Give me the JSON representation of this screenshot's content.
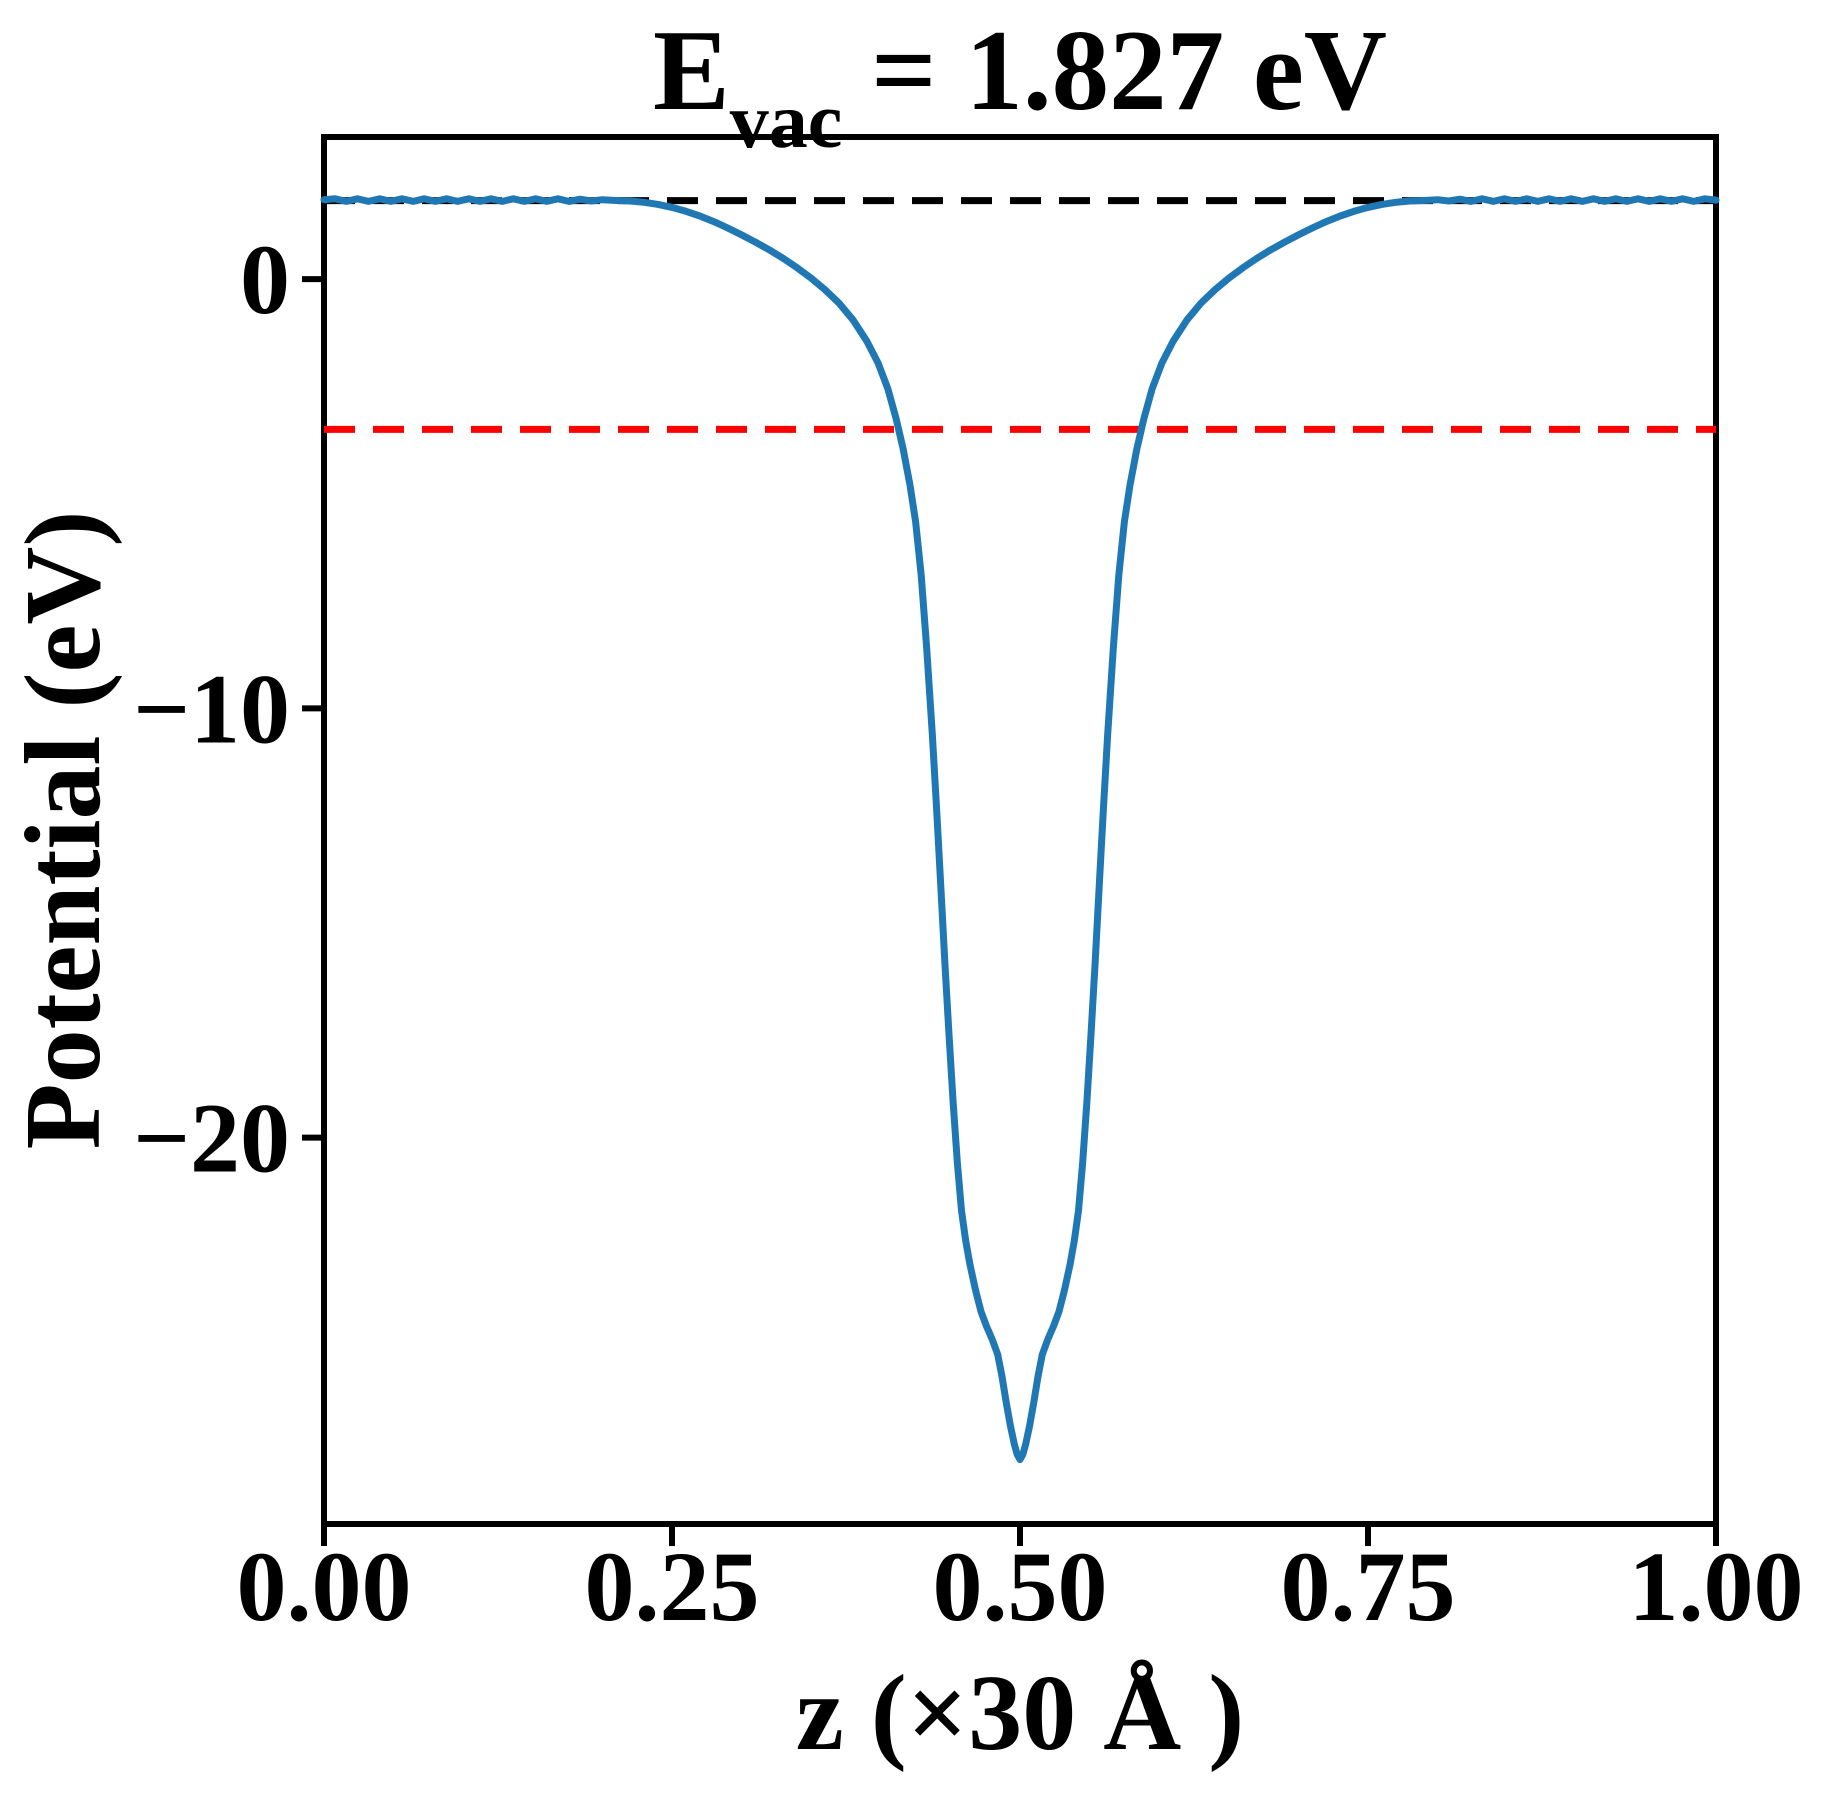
{
  "title": {
    "e": "E",
    "sub": "vac",
    "rest": " = 1.827 eV"
  },
  "labels": {
    "xlabel": "z (×30 Å )",
    "ylabel": "Potential (eV)"
  },
  "chart_data": {
    "type": "line",
    "title": "E_vac = 1.827 eV",
    "xlabel": "z (×30 Å )",
    "ylabel": "Potential (eV)",
    "grid": false,
    "legend": "none",
    "xlim": [
      0.0,
      1.0
    ],
    "ylim": [
      -29.0,
      3.31
    ],
    "xticks": {
      "values": [
        0.0,
        0.25,
        0.5,
        0.75,
        1.0
      ],
      "labels": [
        "0.00",
        "0.25",
        "0.50",
        "0.75",
        "1.00"
      ]
    },
    "yticks": {
      "values": [
        0,
        -10,
        -20
      ],
      "labels": [
        "0",
        "−10",
        "−20"
      ]
    },
    "reference_lines": [
      {
        "name": "vacuum-level-line",
        "y": 1.827,
        "color": "#000000",
        "style": "dashed"
      },
      {
        "name": "fermi-level-line",
        "y": -3.5,
        "color": "#ff0000",
        "style": "dashed"
      }
    ],
    "series": [
      {
        "name": "planar-averaged-potential",
        "color": "#1f77b4",
        "style": "solid",
        "points": [
          [
            0.0,
            1.85
          ],
          [
            0.008,
            1.87
          ],
          [
            0.016,
            1.81
          ],
          [
            0.024,
            1.87
          ],
          [
            0.032,
            1.81
          ],
          [
            0.04,
            1.87
          ],
          [
            0.048,
            1.81
          ],
          [
            0.056,
            1.87
          ],
          [
            0.064,
            1.81
          ],
          [
            0.072,
            1.87
          ],
          [
            0.08,
            1.81
          ],
          [
            0.088,
            1.87
          ],
          [
            0.096,
            1.81
          ],
          [
            0.104,
            1.87
          ],
          [
            0.112,
            1.81
          ],
          [
            0.12,
            1.87
          ],
          [
            0.128,
            1.81
          ],
          [
            0.136,
            1.87
          ],
          [
            0.144,
            1.81
          ],
          [
            0.152,
            1.87
          ],
          [
            0.16,
            1.81
          ],
          [
            0.168,
            1.87
          ],
          [
            0.176,
            1.81
          ],
          [
            0.184,
            1.86
          ],
          [
            0.192,
            1.82
          ],
          [
            0.2,
            1.85
          ],
          [
            0.21,
            1.83
          ],
          [
            0.22,
            1.82
          ],
          [
            0.23,
            1.79
          ],
          [
            0.24,
            1.74
          ],
          [
            0.25,
            1.67
          ],
          [
            0.26,
            1.58
          ],
          [
            0.27,
            1.47
          ],
          [
            0.28,
            1.34
          ],
          [
            0.29,
            1.19
          ],
          [
            0.3,
            1.03
          ],
          [
            0.31,
            0.86
          ],
          [
            0.32,
            0.68
          ],
          [
            0.33,
            0.48
          ],
          [
            0.34,
            0.26
          ],
          [
            0.35,
            0.02
          ],
          [
            0.36,
            -0.25
          ],
          [
            0.37,
            -0.56
          ],
          [
            0.38,
            -0.95
          ],
          [
            0.39,
            -1.45
          ],
          [
            0.398,
            -1.95
          ],
          [
            0.405,
            -2.55
          ],
          [
            0.411,
            -3.25
          ],
          [
            0.416,
            -3.95
          ],
          [
            0.421,
            -4.8
          ],
          [
            0.425,
            -5.65
          ],
          [
            0.429,
            -6.9
          ],
          [
            0.433,
            -8.6
          ],
          [
            0.437,
            -10.6
          ],
          [
            0.44,
            -12.3
          ],
          [
            0.443,
            -14.1
          ],
          [
            0.446,
            -15.9
          ],
          [
            0.449,
            -17.6
          ],
          [
            0.452,
            -19.2
          ],
          [
            0.455,
            -20.6
          ],
          [
            0.458,
            -21.7
          ],
          [
            0.461,
            -22.4
          ],
          [
            0.464,
            -22.95
          ],
          [
            0.468,
            -23.55
          ],
          [
            0.472,
            -24.05
          ],
          [
            0.476,
            -24.4
          ],
          [
            0.48,
            -24.7
          ],
          [
            0.484,
            -25.05
          ],
          [
            0.487,
            -25.55
          ],
          [
            0.49,
            -26.15
          ],
          [
            0.493,
            -26.7
          ],
          [
            0.496,
            -27.15
          ],
          [
            0.498,
            -27.38
          ],
          [
            0.5,
            -27.5
          ],
          [
            0.502,
            -27.38
          ],
          [
            0.504,
            -27.15
          ],
          [
            0.507,
            -26.7
          ],
          [
            0.51,
            -26.15
          ],
          [
            0.513,
            -25.55
          ],
          [
            0.516,
            -25.05
          ],
          [
            0.52,
            -24.7
          ],
          [
            0.524,
            -24.4
          ],
          [
            0.528,
            -24.05
          ],
          [
            0.532,
            -23.55
          ],
          [
            0.536,
            -22.95
          ],
          [
            0.539,
            -22.4
          ],
          [
            0.542,
            -21.7
          ],
          [
            0.545,
            -20.6
          ],
          [
            0.548,
            -19.2
          ],
          [
            0.551,
            -17.6
          ],
          [
            0.554,
            -15.9
          ],
          [
            0.557,
            -14.1
          ],
          [
            0.56,
            -12.3
          ],
          [
            0.563,
            -10.6
          ],
          [
            0.567,
            -8.6
          ],
          [
            0.571,
            -6.9
          ],
          [
            0.575,
            -5.65
          ],
          [
            0.579,
            -4.8
          ],
          [
            0.584,
            -3.95
          ],
          [
            0.589,
            -3.25
          ],
          [
            0.595,
            -2.55
          ],
          [
            0.602,
            -1.95
          ],
          [
            0.61,
            -1.45
          ],
          [
            0.62,
            -0.95
          ],
          [
            0.63,
            -0.56
          ],
          [
            0.64,
            -0.25
          ],
          [
            0.65,
            0.02
          ],
          [
            0.66,
            0.26
          ],
          [
            0.67,
            0.48
          ],
          [
            0.68,
            0.68
          ],
          [
            0.69,
            0.86
          ],
          [
            0.7,
            1.03
          ],
          [
            0.71,
            1.19
          ],
          [
            0.72,
            1.34
          ],
          [
            0.73,
            1.47
          ],
          [
            0.74,
            1.58
          ],
          [
            0.75,
            1.67
          ],
          [
            0.76,
            1.74
          ],
          [
            0.77,
            1.79
          ],
          [
            0.78,
            1.82
          ],
          [
            0.79,
            1.83
          ],
          [
            0.8,
            1.85
          ],
          [
            0.808,
            1.82
          ],
          [
            0.816,
            1.86
          ],
          [
            0.824,
            1.81
          ],
          [
            0.832,
            1.87
          ],
          [
            0.84,
            1.81
          ],
          [
            0.848,
            1.87
          ],
          [
            0.856,
            1.81
          ],
          [
            0.864,
            1.87
          ],
          [
            0.872,
            1.81
          ],
          [
            0.88,
            1.87
          ],
          [
            0.888,
            1.81
          ],
          [
            0.896,
            1.87
          ],
          [
            0.904,
            1.81
          ],
          [
            0.912,
            1.87
          ],
          [
            0.92,
            1.81
          ],
          [
            0.928,
            1.87
          ],
          [
            0.936,
            1.81
          ],
          [
            0.944,
            1.87
          ],
          [
            0.952,
            1.81
          ],
          [
            0.96,
            1.87
          ],
          [
            0.968,
            1.81
          ],
          [
            0.976,
            1.87
          ],
          [
            0.984,
            1.81
          ],
          [
            0.992,
            1.87
          ],
          [
            1.0,
            1.84
          ]
        ]
      }
    ]
  }
}
